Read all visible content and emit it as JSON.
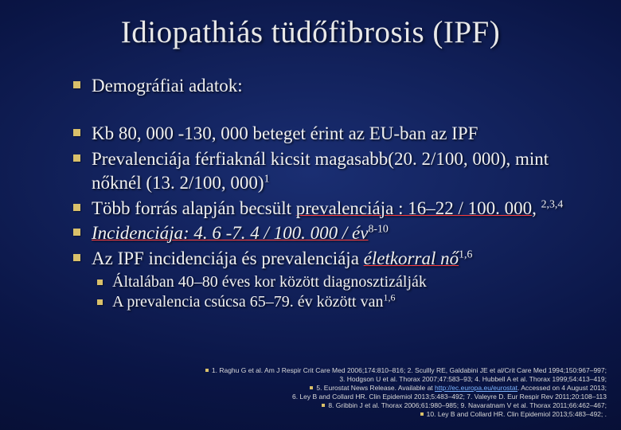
{
  "title": "Idiopathiás tüdőfibrosis (IPF)",
  "bullets": {
    "b0": "Demográfiai adatok:",
    "b1": "Kb 80, 000 -130, 000 beteget érint az EU-ban az IPF",
    "b2_pre": "Prevalenciája férfiaknál kicsit magasabb(20. 2/100, 000), mint nőknél (13. 2/100, 000)",
    "b2_sup": "1",
    "b3_pre": "Több forrás alapján becsült ",
    "b3_u": "prevalenciája : 16–22 / 100. 000",
    "b3_post": ", ",
    "b3_sup": "2,3,4",
    "b4_u": "Incidenciája: 4. 6 -7. 4 / 100. 000 / év",
    "b4_sup": "8-10",
    "b5_pre": "Az IPF incidenciája és prevalenciája ",
    "b5_u": "életkorral nő",
    "b5_sup": "1,6",
    "sb0": "Általában 40–80 éves kor között diagnosztizálják",
    "sb1": "A prevalencia csúcsa 65–79. év között van",
    "sb1_sup": "1,6"
  },
  "refs": {
    "r1a": "1. Raghu G et al. Am J Respir Crit Care Med 2006;174:810–816; 2. Scullly RE, Galdabini JE et al/Crit Care Med 1994;150:967–997;",
    "r1b": "3. Hodgson U et al. Thorax 2007;47:583–93; 4. Hubbell A et al. Thorax 1999;54:413–419;",
    "r2a": "5. Eurostat News Release. Available at ",
    "r2link": "http://ec.europa.eu/eurostat",
    "r2b": ". Accessed on 4 August 2013;",
    "r3": "6. Ley B and Collard HR. Clin Epidemiol 2013;5:483–492; 7. Valeyre D. Eur Respir Rev 2011;20:108–113",
    "r4": "8. Gribbin J et al. Thorax 2006;61:980–985; 9. Navaratnam V et al. Thorax 2011;66:462–467;",
    "r5": "10. Ley B and Collard HR. Clin Epidemiol 2013;5:483–492; ."
  },
  "colors": {
    "bullet_square": "#d9c06a",
    "underline": "#ff3e3e",
    "text": "#f0f0f0",
    "bg_center": "#1a2e72",
    "bg_edge": "#030820",
    "link": "#7db4ff"
  }
}
